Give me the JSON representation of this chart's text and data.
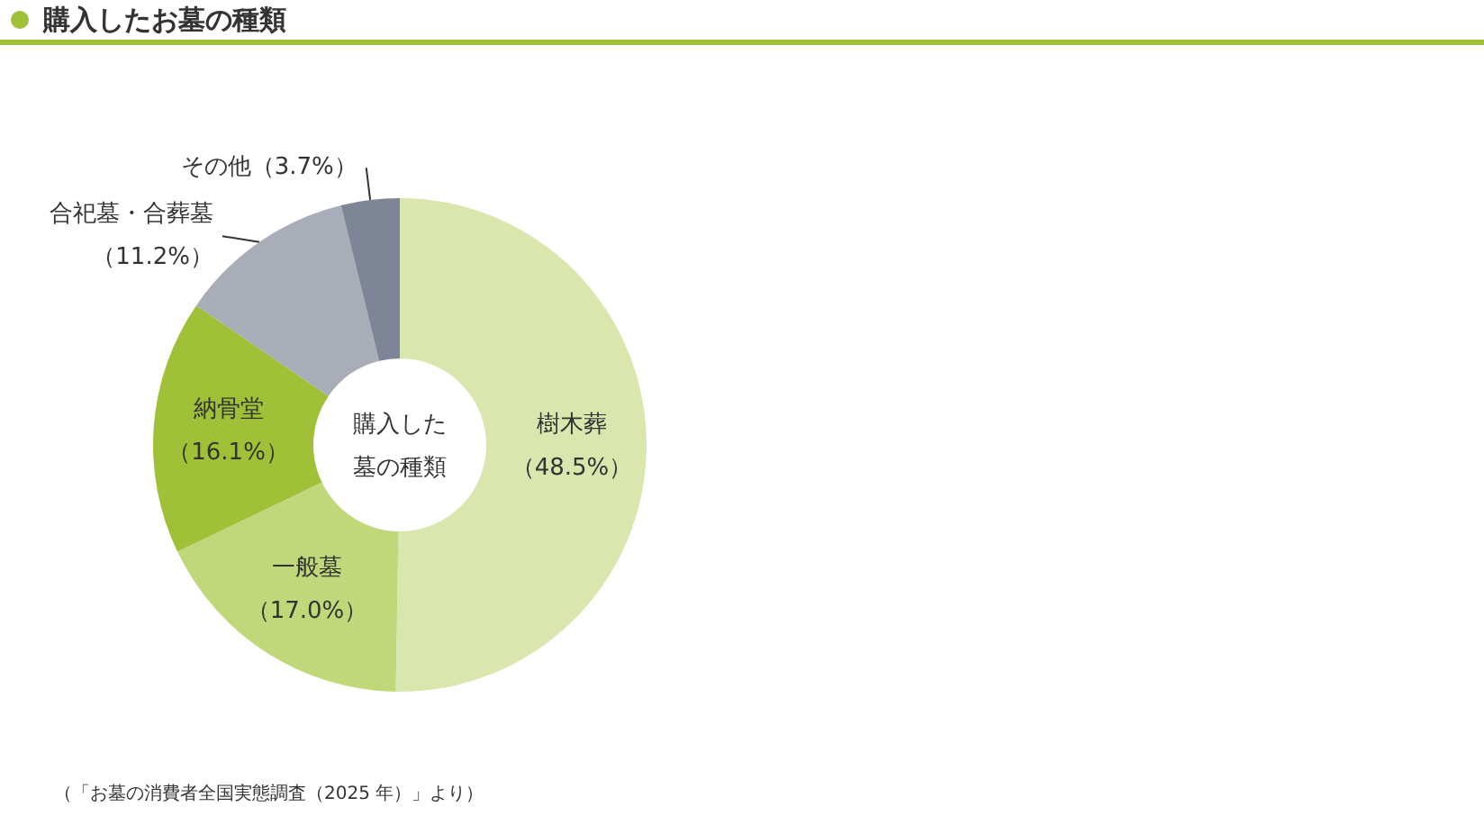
{
  "chart_data": {
    "type": "donut",
    "title": "購入したお墓の種類",
    "categories": [
      "樹木葬",
      "一般墓",
      "納骨堂",
      "合祀墓・合葬墓",
      "その他"
    ],
    "values": [
      48.5,
      17.0,
      16.1,
      11.2,
      3.7
    ],
    "value_labels": [
      "（48.5%）",
      "（17.0%）",
      "（16.1%）",
      "（11.2%）",
      "（3.7%）"
    ],
    "colors": [
      "#d9e6ad",
      "#c0d77a",
      "#a0c037",
      "#a8adb8",
      "#7e8596"
    ],
    "annotations": [
      "購入した",
      "墓の種類",
      "（「お墓の消費者全国実態調査（2025 年）」より）"
    ],
    "legend": false
  }
}
